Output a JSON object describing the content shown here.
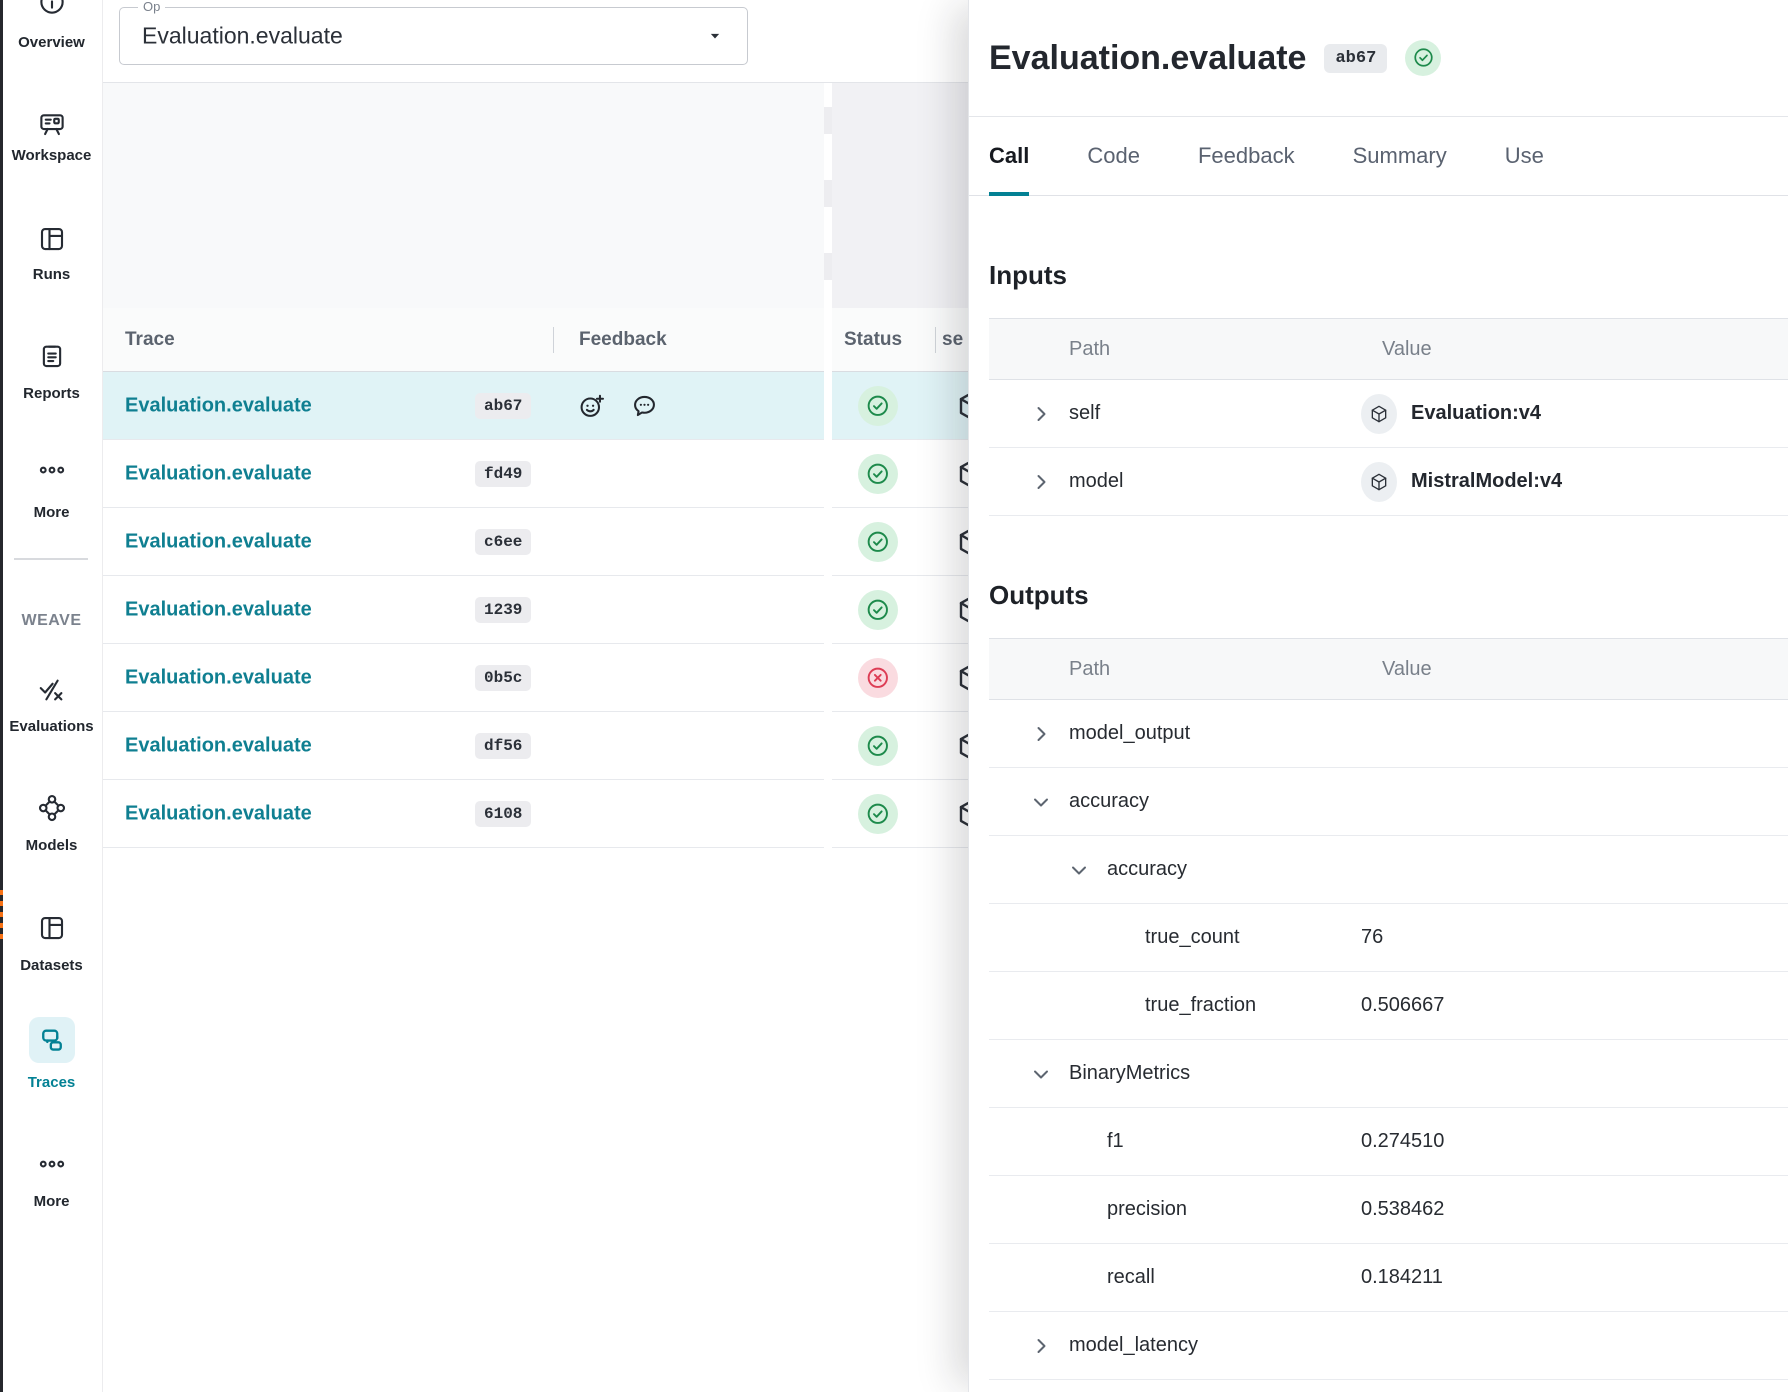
{
  "colors": {
    "accent_teal": "#038194",
    "link_teal": "#0f7f91",
    "selected_row_bg": "#e0f3f6",
    "success_bg": "#d7f1df",
    "success_fg": "#1d8a4b",
    "error_bg": "#fadbe0",
    "error_fg": "#dd3d55",
    "chip_bg": "#ececef"
  },
  "sidebar": {
    "section_label": "WEAVE",
    "sections": [
      {
        "items": [
          {
            "icon": "overview-icon",
            "label": "Overview"
          },
          {
            "icon": "workspace-icon",
            "label": "Workspace"
          },
          {
            "icon": "runs-icon",
            "label": "Runs"
          },
          {
            "icon": "reports-icon",
            "label": "Reports"
          },
          {
            "icon": "more-icon",
            "label": "More"
          }
        ]
      },
      {
        "items": [
          {
            "icon": "evaluations-icon",
            "label": "Evaluations"
          },
          {
            "icon": "models-icon",
            "label": "Models"
          },
          {
            "icon": "datasets-icon",
            "label": "Datasets"
          },
          {
            "icon": "traces-icon",
            "label": "Traces",
            "active": true
          },
          {
            "icon": "more-icon",
            "label": "More"
          }
        ]
      }
    ]
  },
  "op_filter": {
    "label": "Op",
    "value": "Evaluation.evaluate"
  },
  "trace_table": {
    "columns": [
      "Trace",
      "Feedback",
      "Status",
      "se"
    ],
    "rows": [
      {
        "name": "Evaluation.evaluate",
        "id": "ab67",
        "status": "success",
        "selected": true,
        "has_feedback": true
      },
      {
        "name": "Evaluation.evaluate",
        "id": "fd49",
        "status": "success",
        "selected": false,
        "has_feedback": false
      },
      {
        "name": "Evaluation.evaluate",
        "id": "c6ee",
        "status": "success",
        "selected": false,
        "has_feedback": false
      },
      {
        "name": "Evaluation.evaluate",
        "id": "1239",
        "status": "success",
        "selected": false,
        "has_feedback": false
      },
      {
        "name": "Evaluation.evaluate",
        "id": "0b5c",
        "status": "error",
        "selected": false,
        "has_feedback": false
      },
      {
        "name": "Evaluation.evaluate",
        "id": "df56",
        "status": "success",
        "selected": false,
        "has_feedback": false
      },
      {
        "name": "Evaluation.evaluate",
        "id": "6108",
        "status": "success",
        "selected": false,
        "has_feedback": false
      }
    ]
  },
  "detail_panel": {
    "title": "Evaluation.evaluate",
    "id_chip": "ab67",
    "status": "success",
    "tabs": [
      {
        "label": "Call",
        "active": true
      },
      {
        "label": "Code",
        "active": false
      },
      {
        "label": "Feedback",
        "active": false
      },
      {
        "label": "Summary",
        "active": false
      },
      {
        "label": "Use",
        "active": false
      }
    ],
    "inputs": {
      "heading": "Inputs",
      "columns": [
        "Path",
        "Value"
      ],
      "rows": [
        {
          "path": "self",
          "indent": 0,
          "expand": "collapsed",
          "value_type": "object",
          "value": "Evaluation:v4"
        },
        {
          "path": "model",
          "indent": 0,
          "expand": "collapsed",
          "value_type": "object",
          "value": "MistralModel:v4"
        }
      ]
    },
    "outputs": {
      "heading": "Outputs",
      "columns": [
        "Path",
        "Value"
      ],
      "rows": [
        {
          "path": "model_output",
          "indent": 0,
          "expand": "collapsed",
          "value_type": "none",
          "value": ""
        },
        {
          "path": "accuracy",
          "indent": 0,
          "expand": "expanded",
          "value_type": "none",
          "value": ""
        },
        {
          "path": "accuracy",
          "indent": 1,
          "expand": "expanded",
          "value_type": "none",
          "value": ""
        },
        {
          "path": "true_count",
          "indent": 2,
          "expand": "leaf",
          "value_type": "text",
          "value": "76"
        },
        {
          "path": "true_fraction",
          "indent": 2,
          "expand": "leaf",
          "value_type": "text",
          "value": "0.506667"
        },
        {
          "path": "BinaryMetrics",
          "indent": 0,
          "expand": "expanded",
          "value_type": "none",
          "value": ""
        },
        {
          "path": "f1",
          "indent": 1,
          "expand": "leaf",
          "value_type": "text",
          "value": "0.274510"
        },
        {
          "path": "precision",
          "indent": 1,
          "expand": "leaf",
          "value_type": "text",
          "value": "0.538462"
        },
        {
          "path": "recall",
          "indent": 1,
          "expand": "leaf",
          "value_type": "text",
          "value": "0.184211"
        },
        {
          "path": "model_latency",
          "indent": 0,
          "expand": "collapsed",
          "value_type": "none",
          "value": ""
        }
      ]
    }
  }
}
